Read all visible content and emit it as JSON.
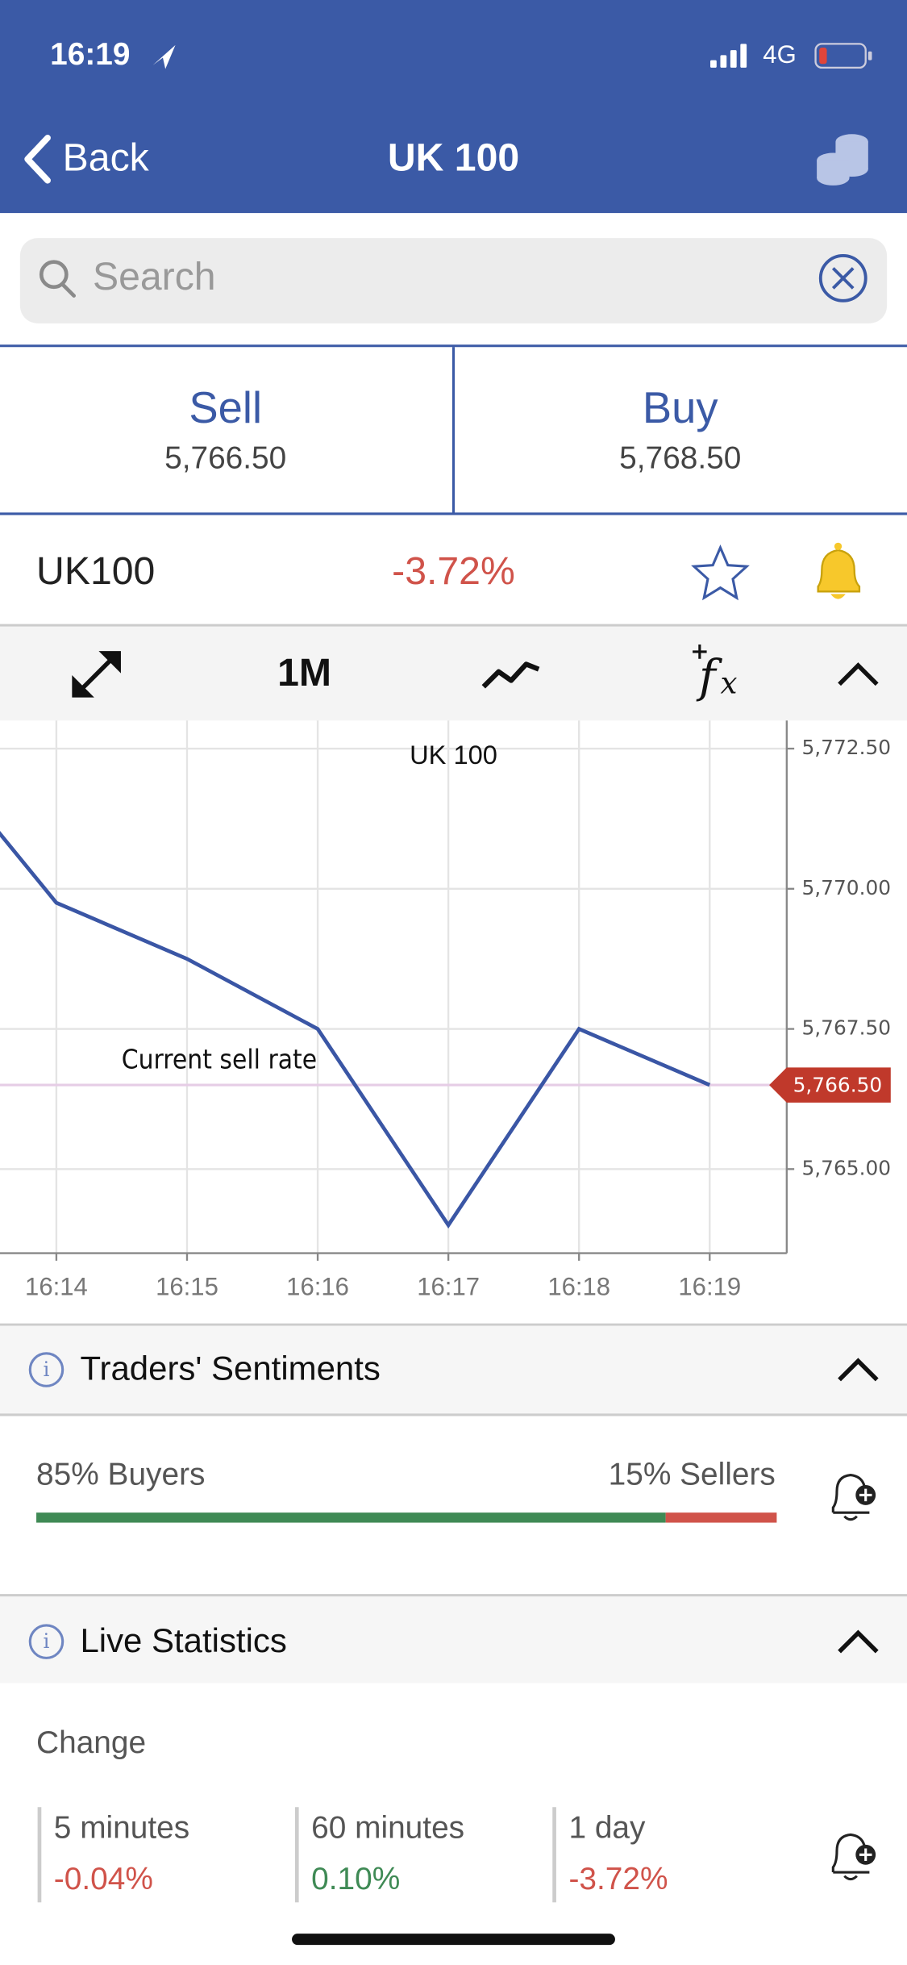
{
  "status_bar": {
    "time": "16:19",
    "network": "4G"
  },
  "nav": {
    "back": "Back",
    "title": "UK 100"
  },
  "search": {
    "placeholder": "Search"
  },
  "quote": {
    "sell_label": "Sell",
    "sell_price": "5,766.50",
    "buy_label": "Buy",
    "buy_price": "5,768.50"
  },
  "instrument": {
    "name": "UK100",
    "change": "-3.72%"
  },
  "toolbar": {
    "period": "1M"
  },
  "chart_data": {
    "type": "line",
    "title": "UK 100",
    "categories": [
      null,
      "16:14",
      "16:15",
      "16:16",
      "16:17",
      "16:18",
      "16:19"
    ],
    "series": [
      {
        "name": "UK 100",
        "color": "#3a56a5",
        "values": [
          5772.6,
          5769.75,
          5768.75,
          5767.5,
          5764.0,
          5767.5,
          5766.5
        ]
      }
    ],
    "ylim": [
      5763.5,
      5773.0
    ],
    "yticks": [
      {
        "value": 5765,
        "label": "5,765.00"
      },
      {
        "value": 5767.5,
        "label": "5,767.50"
      },
      {
        "value": 5770,
        "label": "5,770.00"
      },
      {
        "value": 5772.5,
        "label": "5,772.50"
      }
    ],
    "grid": true,
    "annotation": "Current sell rate",
    "reference_line": {
      "value": 5766.5,
      "label": "5,766.50",
      "color": "#e6cde6",
      "badge_color": "#c0392b"
    }
  },
  "sentiment": {
    "title": "Traders' Sentiments",
    "buyers_label": "85% Buyers",
    "buyers": 85,
    "buyers_color": "#3f8a55",
    "sellers_label": "15% Sellers",
    "sellers": 15,
    "sellers_color": "#d0534a"
  },
  "live_stats": {
    "title": "Live Statistics",
    "change_label": "Change",
    "items": [
      {
        "label": "5 minutes",
        "value": "-0.04%",
        "color": "#d0534a"
      },
      {
        "label": "60 minutes",
        "value": "0.10%",
        "color": "#3f8a55"
      },
      {
        "label": "1 day",
        "value": "-3.72%",
        "color": "#d0534a"
      }
    ]
  }
}
